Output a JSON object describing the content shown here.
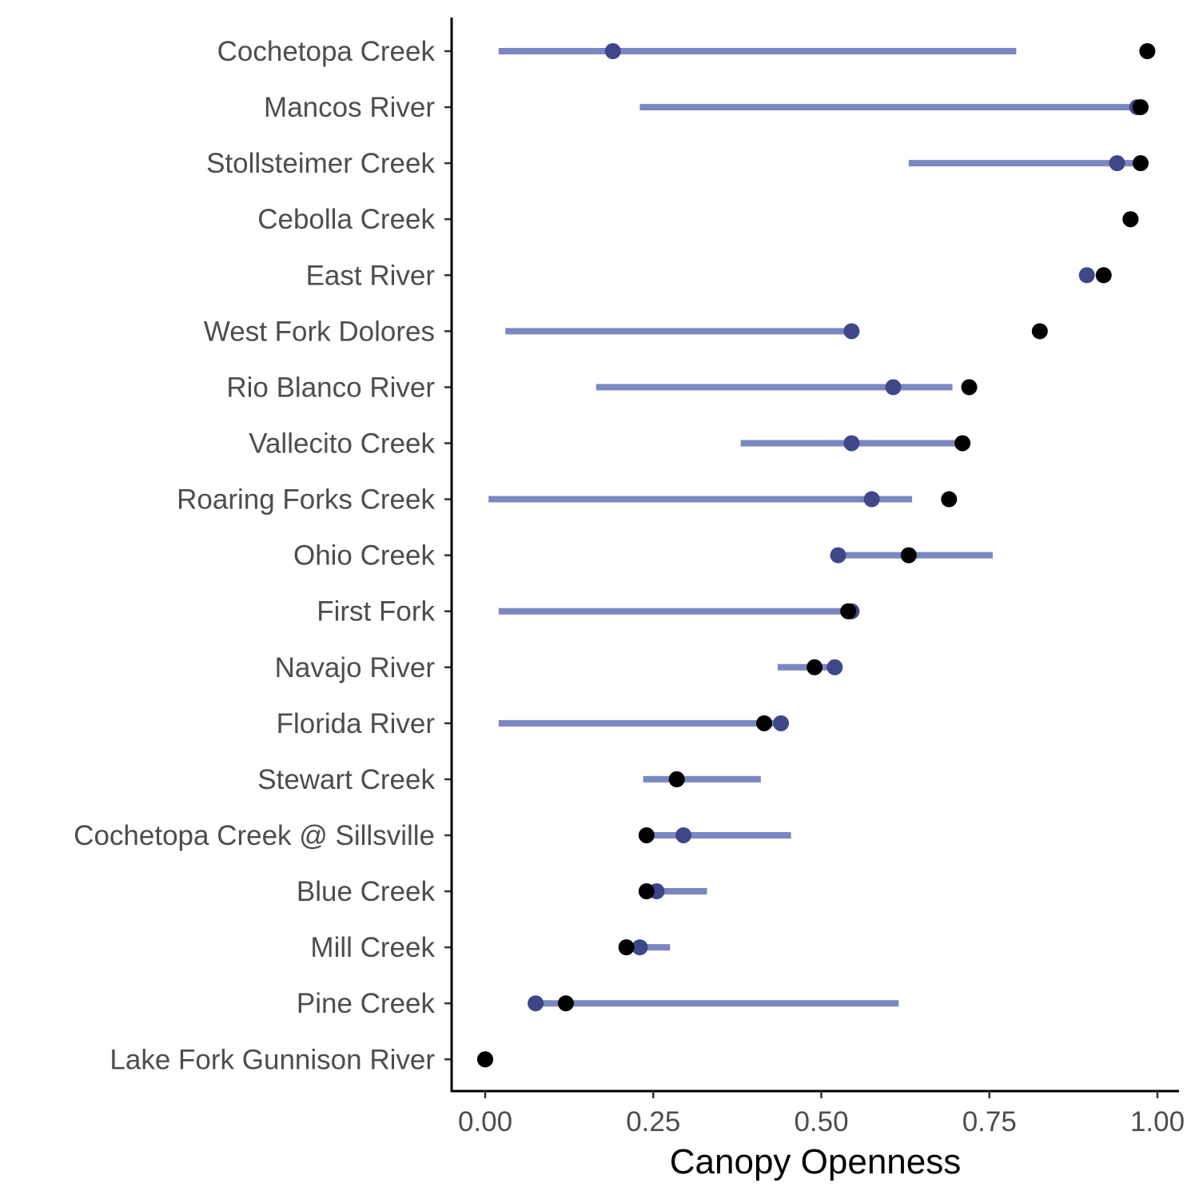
{
  "chart_data": {
    "type": "dot-range",
    "xlabel": "Canopy Openness",
    "ylabel": "",
    "xlim": [
      -0.045,
      1.03
    ],
    "x_ticks": [
      "0.00",
      "0.25",
      "0.50",
      "0.75",
      "1.00"
    ],
    "x_tick_values": [
      0,
      0.25,
      0.5,
      0.75,
      1.0
    ],
    "grid": false,
    "legend": "none",
    "colors": {
      "range": "#7b86c2",
      "mean": "#3f4788",
      "observed": "#000000",
      "axis": "#000000",
      "text": "#4d4d4d"
    },
    "categories": [
      "Cochetopa Creek",
      "Mancos River",
      "Stollsteimer Creek",
      "Cebolla Creek",
      "East River",
      "West Fork Dolores",
      "Rio Blanco River",
      "Vallecito Creek",
      "Roaring Forks Creek",
      "Ohio Creek",
      "First Fork",
      "Navajo River",
      "Florida River",
      "Stewart Creek",
      "Cochetopa Creek @ Sillsville",
      "Blue Creek",
      "Mill Creek",
      "Pine Creek",
      "Lake Fork Gunnison River"
    ],
    "series": [
      {
        "kind": "range",
        "low": [
          0.02,
          0.23,
          0.63,
          0.96,
          0.89,
          0.03,
          0.165,
          0.38,
          0.005,
          0.525,
          0.02,
          0.435,
          0.02,
          0.235,
          0.24,
          0.24,
          0.2,
          0.075,
          0.0
        ],
        "high": [
          0.79,
          0.975,
          0.97,
          0.965,
          0.9,
          0.545,
          0.695,
          0.715,
          0.635,
          0.755,
          0.545,
          0.52,
          0.44,
          0.41,
          0.455,
          0.33,
          0.275,
          0.615,
          0.005
        ]
      },
      {
        "kind": "mean",
        "values": [
          0.19,
          0.97,
          0.94,
          0.96,
          0.895,
          0.545,
          0.607,
          0.545,
          0.575,
          0.525,
          0.545,
          0.52,
          0.44,
          0.285,
          0.295,
          0.255,
          0.23,
          0.075,
          0.0
        ]
      },
      {
        "kind": "observed",
        "values": [
          0.985,
          0.975,
          0.975,
          0.96,
          0.92,
          0.825,
          0.72,
          0.71,
          0.69,
          0.63,
          0.54,
          0.49,
          0.415,
          0.285,
          0.24,
          0.24,
          0.21,
          0.12,
          0.0
        ]
      }
    ]
  }
}
